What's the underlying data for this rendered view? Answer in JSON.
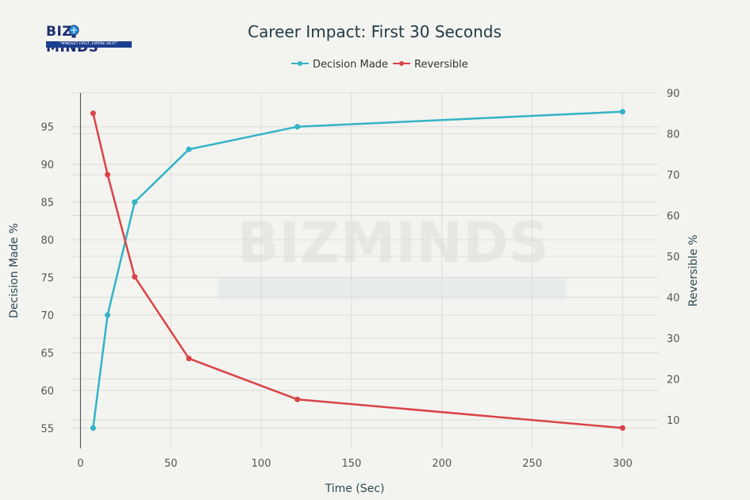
{
  "logo": {
    "text": "BIZMINDS",
    "tagline": "\"MINDSET FIRST, EMPIRE NEXT\""
  },
  "watermark": {
    "text": "BIZMINDS"
  },
  "colors": {
    "decision": "#32b4c6",
    "reversible": "#d94447",
    "grid": "#dcdcd8",
    "background": "#f3f3f0"
  },
  "chart_data": {
    "type": "line",
    "title": "Career Impact: First 30 Seconds",
    "xlabel": "Time (Sec)",
    "ylabel": "Decision Made %",
    "y2label": "Reversible %",
    "xlim": [
      -5,
      320
    ],
    "ylim": [
      52.3,
      99.5
    ],
    "y2lim": [
      3,
      90
    ],
    "xticks": [
      0,
      50,
      100,
      150,
      200,
      250,
      300
    ],
    "yticks": [
      55,
      60,
      65,
      70,
      75,
      80,
      85,
      90,
      95
    ],
    "y2ticks": [
      10,
      20,
      30,
      40,
      50,
      60,
      70,
      80,
      90
    ],
    "legend_position": "top-center",
    "grid": true,
    "series": [
      {
        "name": "Decision Made",
        "axis": "left",
        "color": "#32b4c6",
        "x": [
          7,
          15,
          30,
          60,
          120,
          300
        ],
        "values": [
          55,
          70,
          85,
          92,
          95,
          97
        ]
      },
      {
        "name": "Reversible",
        "axis": "right",
        "color": "#d94447",
        "x": [
          7,
          15,
          30,
          60,
          120,
          300
        ],
        "values": [
          85,
          70,
          45,
          25,
          15,
          8
        ]
      }
    ]
  }
}
